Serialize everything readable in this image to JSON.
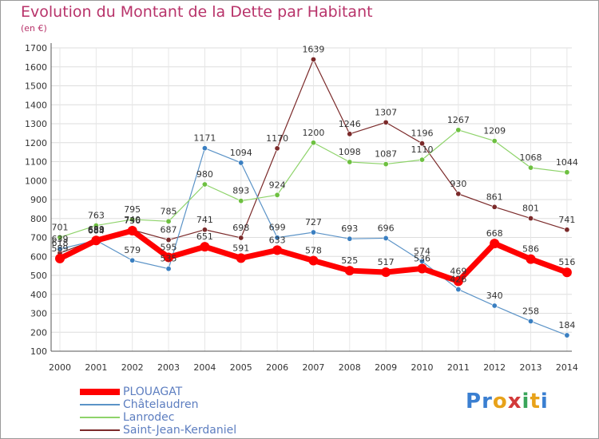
{
  "title": "Evolution du Montant de la Dette par Habitant",
  "unit_label": "(en €)",
  "logo": {
    "letters": [
      {
        "char": "P",
        "color": "#3a7fd1"
      },
      {
        "char": "r",
        "color": "#3a7fd1"
      },
      {
        "char": "o",
        "color": "#e8a21a"
      },
      {
        "char": "x",
        "color": "#d23a3a"
      },
      {
        "char": "i",
        "color": "#3aa55a"
      },
      {
        "char": "t",
        "color": "#e8a21a"
      },
      {
        "char": "i",
        "color": "#3a7fd1"
      }
    ]
  },
  "chart_data": {
    "type": "line",
    "x": [
      "2000",
      "2001",
      "2002",
      "2003",
      "2004",
      "2005",
      "2006",
      "2007",
      "2008",
      "2009",
      "2010",
      "2011",
      "2012",
      "2013",
      "2014"
    ],
    "ylim": [
      100,
      1700
    ],
    "yticks": [
      "100",
      "200",
      "300",
      "400",
      "500",
      "600",
      "700",
      "800",
      "900",
      "1000",
      "1100",
      "1200",
      "1300",
      "1400",
      "1500",
      "1600",
      "1700"
    ],
    "grid": true,
    "legend": "bottom-left",
    "series": [
      {
        "name": "Saint-Jean-Kerdaniel",
        "color": "#7b2a2a",
        "marker": "#7b2a2a",
        "width": 1.2,
        "values": [
          618,
          689,
          740,
          687,
          741,
          698,
          1170,
          1639,
          1246,
          1307,
          1196,
          930,
          861,
          801,
          741
        ]
      },
      {
        "name": "Châtelaudren",
        "color": "#5b93c7",
        "marker": "#3a7fc1",
        "width": 1.2,
        "values": [
          639,
          685,
          579,
          535,
          1171,
          1094,
          699,
          727,
          693,
          696,
          574,
          426,
          340,
          258,
          184
        ]
      },
      {
        "name": "Lanrodec",
        "color": "#8ed36a",
        "marker": "#6dc040",
        "width": 1.2,
        "values": [
          701,
          763,
          795,
          785,
          980,
          893,
          924,
          1200,
          1098,
          1087,
          1110,
          1267,
          1209,
          1068,
          1044
        ]
      },
      {
        "name": "PLOUAGAT",
        "color": "#ff0000",
        "marker": "#ff0000",
        "width": 7,
        "values": [
          589,
          684,
          736,
          595,
          651,
          591,
          633,
          578,
          525,
          517,
          536,
          469,
          668,
          586,
          516
        ]
      }
    ],
    "point_labels": [
      {
        "series": 0,
        "i": 0,
        "text": "618"
      },
      {
        "series": 0,
        "i": 1,
        "text": "689"
      },
      {
        "series": 0,
        "i": 2,
        "text": "740"
      },
      {
        "series": 0,
        "i": 3,
        "text": "687"
      },
      {
        "series": 0,
        "i": 4,
        "text": "741"
      },
      {
        "series": 0,
        "i": 5,
        "text": "698"
      },
      {
        "series": 0,
        "i": 6,
        "text": "1170"
      },
      {
        "series": 0,
        "i": 7,
        "text": "1639"
      },
      {
        "series": 0,
        "i": 8,
        "text": "1246"
      },
      {
        "series": 0,
        "i": 9,
        "text": "1307"
      },
      {
        "series": 0,
        "i": 10,
        "text": "1196"
      },
      {
        "series": 0,
        "i": 11,
        "text": "930"
      },
      {
        "series": 0,
        "i": 12,
        "text": "861"
      },
      {
        "series": 0,
        "i": 13,
        "text": "801"
      },
      {
        "series": 0,
        "i": 14,
        "text": "741"
      },
      {
        "series": 1,
        "i": 0,
        "text": "639"
      },
      {
        "series": 1,
        "i": 1,
        "text": "685"
      },
      {
        "series": 1,
        "i": 2,
        "text": "579"
      },
      {
        "series": 1,
        "i": 3,
        "text": "535"
      },
      {
        "series": 1,
        "i": 4,
        "text": "1171"
      },
      {
        "series": 1,
        "i": 5,
        "text": "1094"
      },
      {
        "series": 1,
        "i": 6,
        "text": "699"
      },
      {
        "series": 1,
        "i": 7,
        "text": "727"
      },
      {
        "series": 1,
        "i": 8,
        "text": "693"
      },
      {
        "series": 1,
        "i": 9,
        "text": "696"
      },
      {
        "series": 1,
        "i": 10,
        "text": "574"
      },
      {
        "series": 1,
        "i": 11,
        "text": "426"
      },
      {
        "series": 1,
        "i": 12,
        "text": "340"
      },
      {
        "series": 1,
        "i": 13,
        "text": "258"
      },
      {
        "series": 1,
        "i": 14,
        "text": "184"
      },
      {
        "series": 2,
        "i": 0,
        "text": "701"
      },
      {
        "series": 2,
        "i": 1,
        "text": "763"
      },
      {
        "series": 2,
        "i": 2,
        "text": "795"
      },
      {
        "series": 2,
        "i": 3,
        "text": "785"
      },
      {
        "series": 2,
        "i": 4,
        "text": "980"
      },
      {
        "series": 2,
        "i": 5,
        "text": "893"
      },
      {
        "series": 2,
        "i": 6,
        "text": "924"
      },
      {
        "series": 2,
        "i": 7,
        "text": "1200"
      },
      {
        "series": 2,
        "i": 8,
        "text": "1098"
      },
      {
        "series": 2,
        "i": 9,
        "text": "1087"
      },
      {
        "series": 2,
        "i": 10,
        "text": "1110"
      },
      {
        "series": 2,
        "i": 11,
        "text": "1267"
      },
      {
        "series": 2,
        "i": 12,
        "text": "1209"
      },
      {
        "series": 2,
        "i": 13,
        "text": "1068"
      },
      {
        "series": 2,
        "i": 14,
        "text": "1044"
      },
      {
        "series": 3,
        "i": 0,
        "text": "589"
      },
      {
        "series": 3,
        "i": 1,
        "text": "684"
      },
      {
        "series": 3,
        "i": 2,
        "text": "736"
      },
      {
        "series": 3,
        "i": 3,
        "text": "595"
      },
      {
        "series": 3,
        "i": 4,
        "text": "651"
      },
      {
        "series": 3,
        "i": 5,
        "text": "591"
      },
      {
        "series": 3,
        "i": 6,
        "text": "633"
      },
      {
        "series": 3,
        "i": 7,
        "text": "578"
      },
      {
        "series": 3,
        "i": 8,
        "text": "525"
      },
      {
        "series": 3,
        "i": 9,
        "text": "517"
      },
      {
        "series": 3,
        "i": 10,
        "text": "536"
      },
      {
        "series": 3,
        "i": 11,
        "text": "469"
      },
      {
        "series": 3,
        "i": 12,
        "text": "668"
      },
      {
        "series": 3,
        "i": 13,
        "text": "586"
      },
      {
        "series": 3,
        "i": 14,
        "text": "516"
      }
    ],
    "legend_entries": [
      {
        "name": "PLOUAGAT",
        "color": "#ff0000",
        "text_color": "#5d7ec0",
        "thickness": 8
      },
      {
        "name": "Châtelaudren",
        "color": "#5b93c7",
        "text_color": "#5d7ec0",
        "thickness": 2
      },
      {
        "name": "Lanrodec",
        "color": "#8ed36a",
        "text_color": "#5d7ec0",
        "thickness": 2
      },
      {
        "name": "Saint-Jean-Kerdaniel",
        "color": "#7b2a2a",
        "text_color": "#5d7ec0",
        "thickness": 2
      }
    ]
  }
}
